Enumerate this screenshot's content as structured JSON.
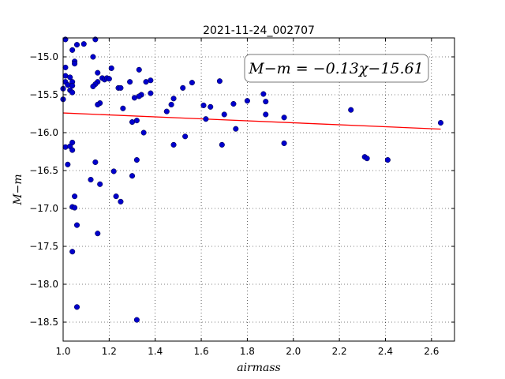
{
  "chart_data": {
    "type": "scatter",
    "title": "2021-11-24_002707",
    "xlabel": "airmass",
    "ylabel": "M−m",
    "xlim": [
      1.0,
      2.7
    ],
    "ylim": [
      -18.75,
      -14.75
    ],
    "xticks": [
      1.0,
      1.2,
      1.4,
      1.6,
      1.8,
      2.0,
      2.2,
      2.4,
      2.6
    ],
    "xtick_labels": [
      "1.0",
      "1.2",
      "1.4",
      "1.6",
      "1.8",
      "2.0",
      "2.2",
      "2.4",
      "2.6"
    ],
    "yticks": [
      -15.0,
      -15.5,
      -16.0,
      -16.5,
      -17.0,
      -17.5,
      -18.0,
      -18.5
    ],
    "ytick_labels": [
      "−15.0",
      "−15.5",
      "−16.0",
      "−16.5",
      "−17.0",
      "−17.5",
      "−18.0",
      "−18.5"
    ],
    "grid": true,
    "annotation": "M−m = −0.13χ−15.61",
    "fit": {
      "slope": -0.13,
      "intercept": -15.61,
      "x_range": [
        1.0,
        2.64
      ],
      "color": "#ff0000"
    },
    "point_color": "#0000cc",
    "points": [
      [
        1.01,
        -14.77
      ],
      [
        1.14,
        -14.77
      ],
      [
        1.06,
        -14.84
      ],
      [
        1.09,
        -14.83
      ],
      [
        1.04,
        -14.91
      ],
      [
        1.13,
        -15.0
      ],
      [
        1.05,
        -15.06
      ],
      [
        1.05,
        -15.09
      ],
      [
        1.01,
        -15.14
      ],
      [
        1.21,
        -15.15
      ],
      [
        1.33,
        -15.17
      ],
      [
        1.15,
        -15.21
      ],
      [
        1.01,
        -15.25
      ],
      [
        1.03,
        -15.27
      ],
      [
        1.17,
        -15.28
      ],
      [
        1.18,
        -15.3
      ],
      [
        1.19,
        -15.28
      ],
      [
        1.2,
        -15.29
      ],
      [
        1.29,
        -15.33
      ],
      [
        1.38,
        -15.31
      ],
      [
        1.36,
        -15.33
      ],
      [
        1.56,
        -15.34
      ],
      [
        1.68,
        -15.32
      ],
      [
        1.01,
        -15.33
      ],
      [
        1.04,
        -15.33
      ],
      [
        1.15,
        -15.33
      ],
      [
        1.02,
        -15.37
      ],
      [
        1.04,
        -15.38
      ],
      [
        1.14,
        -15.36
      ],
      [
        1.13,
        -15.39
      ],
      [
        1.24,
        -15.41
      ],
      [
        1.25,
        -15.41
      ],
      [
        1.52,
        -15.41
      ],
      [
        1.0,
        -15.42
      ],
      [
        1.03,
        -15.44
      ],
      [
        1.04,
        -15.47
      ],
      [
        1.34,
        -15.5
      ],
      [
        1.33,
        -15.52
      ],
      [
        1.38,
        -15.48
      ],
      [
        1.87,
        -15.49
      ],
      [
        1.31,
        -15.54
      ],
      [
        1.48,
        -15.55
      ],
      [
        1.0,
        -15.56
      ],
      [
        1.74,
        -15.62
      ],
      [
        1.8,
        -15.58
      ],
      [
        1.88,
        -15.59
      ],
      [
        1.16,
        -15.61
      ],
      [
        1.15,
        -15.63
      ],
      [
        1.47,
        -15.63
      ],
      [
        1.61,
        -15.64
      ],
      [
        1.64,
        -15.66
      ],
      [
        1.26,
        -15.68
      ],
      [
        1.45,
        -15.72
      ],
      [
        2.25,
        -15.7
      ],
      [
        1.7,
        -15.76
      ],
      [
        1.88,
        -15.76
      ],
      [
        1.96,
        -15.8
      ],
      [
        1.62,
        -15.82
      ],
      [
        1.32,
        -15.84
      ],
      [
        1.3,
        -15.86
      ],
      [
        2.64,
        -15.87
      ],
      [
        1.75,
        -15.95
      ],
      [
        1.35,
        -16.0
      ],
      [
        1.53,
        -16.05
      ],
      [
        1.04,
        -16.13
      ],
      [
        1.96,
        -16.14
      ],
      [
        1.48,
        -16.16
      ],
      [
        1.69,
        -16.16
      ],
      [
        1.01,
        -16.19
      ],
      [
        1.03,
        -16.18
      ],
      [
        1.04,
        -16.23
      ],
      [
        2.31,
        -16.32
      ],
      [
        2.32,
        -16.34
      ],
      [
        2.41,
        -16.36
      ],
      [
        1.32,
        -16.36
      ],
      [
        1.14,
        -16.39
      ],
      [
        1.02,
        -16.42
      ],
      [
        1.22,
        -16.51
      ],
      [
        1.3,
        -16.57
      ],
      [
        1.12,
        -16.62
      ],
      [
        1.16,
        -16.68
      ],
      [
        1.05,
        -16.84
      ],
      [
        1.23,
        -16.84
      ],
      [
        1.25,
        -16.91
      ],
      [
        1.04,
        -16.98
      ],
      [
        1.05,
        -16.99
      ],
      [
        1.06,
        -17.22
      ],
      [
        1.15,
        -17.33
      ],
      [
        1.04,
        -17.57
      ],
      [
        1.06,
        -18.3
      ],
      [
        1.32,
        -18.47
      ]
    ]
  }
}
